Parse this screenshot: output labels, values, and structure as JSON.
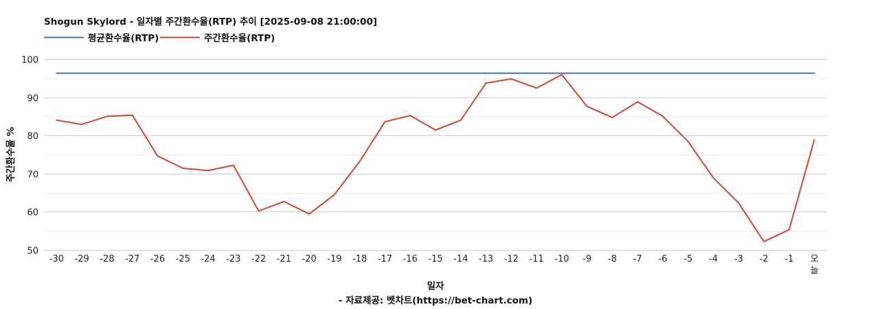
{
  "chart_data": {
    "type": "line",
    "title": "Shogun Skylord - 일자별 주간환수율(RTP) 추이 [2025-09-08 21:00:00]",
    "xlabel": "일자",
    "ylabel": "주간환수율 %",
    "source": "- 자료제공: 벳차트(https://bet-chart.com)",
    "categories": [
      "-30",
      "-29",
      "-28",
      "-27",
      "-26",
      "-25",
      "-24",
      "-23",
      "-22",
      "-21",
      "-20",
      "-19",
      "-18",
      "-17",
      "-16",
      "-15",
      "-14",
      "-13",
      "-12",
      "-11",
      "-10",
      "-9",
      "-8",
      "-7",
      "-6",
      "-5",
      "-4",
      "-3",
      "-2",
      "-1",
      "오늘"
    ],
    "ylim": [
      50,
      100
    ],
    "yticks": [
      50,
      60,
      70,
      80,
      90,
      100
    ],
    "grid": true,
    "legend_position": "top-left",
    "series": [
      {
        "name": "평균환수율(RTP)",
        "color": "#4472c4",
        "values": [
          96.3,
          96.3,
          96.3,
          96.3,
          96.3,
          96.3,
          96.3,
          96.3,
          96.3,
          96.3,
          96.3,
          96.3,
          96.3,
          96.3,
          96.3,
          96.3,
          96.3,
          96.3,
          96.3,
          96.3,
          96.3,
          96.3,
          96.3,
          96.3,
          96.3,
          96.3,
          96.3,
          96.3,
          96.3,
          96.3,
          96.3
        ]
      },
      {
        "name": "주간환수율(RTP)",
        "color": "#d9442b",
        "values": [
          84.0,
          82.9,
          85.0,
          85.3,
          74.6,
          71.4,
          70.8,
          72.2,
          60.2,
          62.7,
          59.4,
          64.5,
          73.2,
          83.6,
          85.2,
          81.4,
          84.0,
          93.7,
          94.8,
          92.4,
          95.9,
          87.6,
          84.7,
          88.8,
          85.0,
          78.4,
          68.9,
          62.3,
          52.2,
          55.3,
          78.9
        ]
      }
    ]
  }
}
